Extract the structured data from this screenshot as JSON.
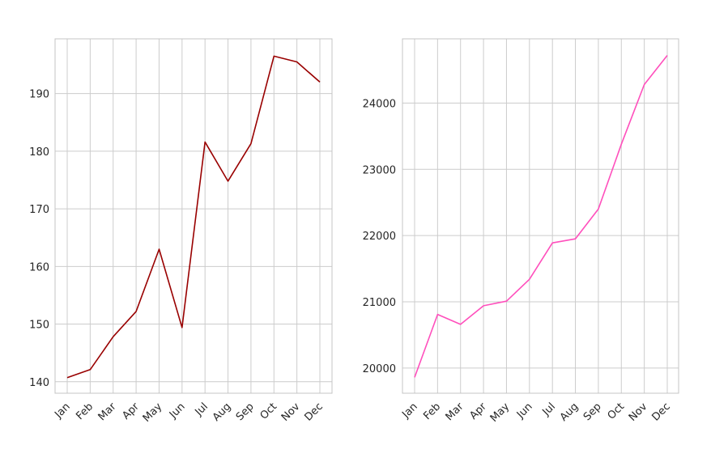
{
  "chart_data": [
    {
      "type": "line",
      "categories": [
        "Jan",
        "Feb",
        "Mar",
        "Apr",
        "May",
        "Jun",
        "Jul",
        "Aug",
        "Sep",
        "Oct",
        "Nov",
        "Dec"
      ],
      "values": [
        140.7,
        142.1,
        147.8,
        152.2,
        163.0,
        149.4,
        181.6,
        174.8,
        181.3,
        196.5,
        195.5,
        192.0
      ],
      "ylim": [
        138.0,
        199.5
      ],
      "yticks": [
        140,
        150,
        160,
        170,
        180,
        190
      ],
      "color": "#990000",
      "grid": true,
      "title": "",
      "xlabel": "",
      "ylabel": ""
    },
    {
      "type": "line",
      "categories": [
        "Jan",
        "Feb",
        "Mar",
        "Apr",
        "May",
        "Jun",
        "Jul",
        "Aug",
        "Sep",
        "Oct",
        "Nov",
        "Dec"
      ],
      "values": [
        19860,
        20810,
        20660,
        20940,
        21010,
        21340,
        21890,
        21950,
        22400,
        23380,
        24280,
        24720
      ],
      "ylim": [
        19620,
        24970
      ],
      "yticks": [
        20000,
        21000,
        22000,
        23000,
        24000
      ],
      "color": "#ff4fbc",
      "grid": true,
      "title": "",
      "xlabel": "",
      "ylabel": ""
    }
  ]
}
